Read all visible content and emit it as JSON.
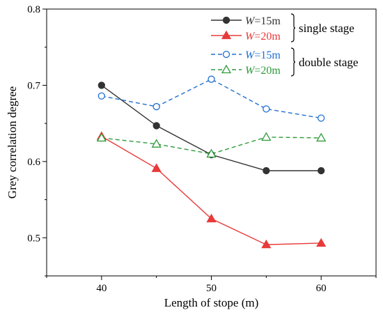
{
  "chart_data": {
    "type": "line",
    "xlabel": "Length of stope (m)",
    "ylabel": "Grey correlation degree",
    "xlim": [
      35,
      65
    ],
    "ylim": [
      0.45,
      0.8
    ],
    "x_ticks": [
      "40",
      "50",
      "60"
    ],
    "y_ticks": [
      "0.5",
      "0.6",
      "0.7",
      "0.8"
    ],
    "x": [
      40,
      45,
      50,
      55,
      60
    ],
    "series": [
      {
        "name_prefix": "W",
        "name_suffix": "=15m",
        "group": "single stage",
        "color": "#333333",
        "line": "solid",
        "marker": "filled-circle",
        "values": [
          0.7,
          0.647,
          0.609,
          0.588,
          0.588
        ]
      },
      {
        "name_prefix": "W",
        "name_suffix": "=20m",
        "group": "single stage",
        "color": "#e83a3a",
        "line": "solid",
        "marker": "filled-triangle",
        "values": [
          0.633,
          0.591,
          0.525,
          0.491,
          0.493
        ]
      },
      {
        "name_prefix": "W",
        "name_suffix": "=15m",
        "group": "double stage",
        "color": "#1f6fd0",
        "line": "dashed",
        "marker": "open-circle",
        "values": [
          0.686,
          0.672,
          0.708,
          0.669,
          0.657
        ]
      },
      {
        "name_prefix": "W",
        "name_suffix": "=20m",
        "group": "double stage",
        "color": "#2e9a3a",
        "line": "dashed",
        "marker": "open-triangle",
        "values": [
          0.631,
          0.623,
          0.61,
          0.632,
          0.631
        ]
      }
    ],
    "groups": [
      "single stage",
      "double stage"
    ],
    "grid": false,
    "legend_position": "top-right"
  }
}
